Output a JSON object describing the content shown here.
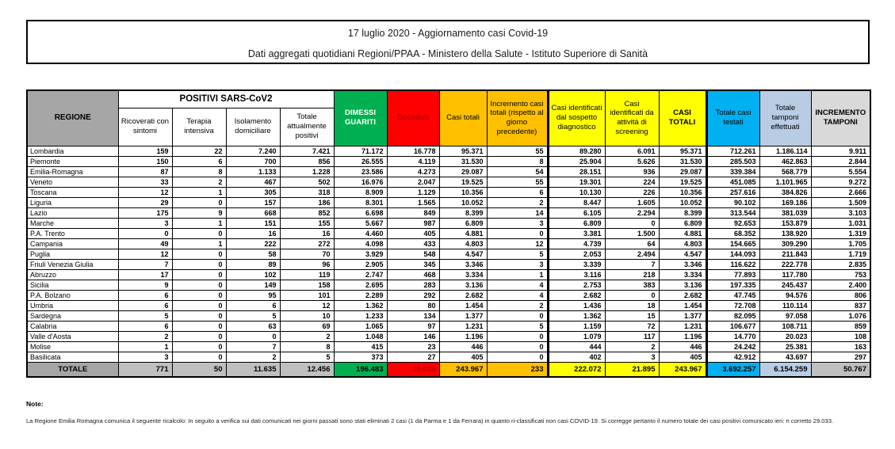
{
  "title": {
    "line1": "17 luglio 2020 - Aggiornamento casi Covid-19",
    "line2": "Dati aggregati quotidiani Regioni/PPAA - Ministero della Salute - Istituto Superiore di Sanità"
  },
  "table": {
    "group_header": "POSITIVI SARS-CoV2",
    "columns": [
      {
        "key": "regione",
        "label": "REGIONE"
      },
      {
        "key": "ricoverati_con_sintomi",
        "label": "Ricoverati con sintomi"
      },
      {
        "key": "terapia_intensiva",
        "label": "Terapia intensiva"
      },
      {
        "key": "isolamento_domiciliare",
        "label": "Isolamento domiciliare"
      },
      {
        "key": "totale_attualmente_positivi",
        "label": "Totale attualmente positivi"
      },
      {
        "key": "dimessi_guariti",
        "label": "DIMESSI GUARITI"
      },
      {
        "key": "deceduti",
        "label": "Deceduti"
      },
      {
        "key": "casi_totali",
        "label": "Casi totali"
      },
      {
        "key": "incremento_casi_totali",
        "label": "Incremento casi totali (rispetto al giorno precedente)"
      },
      {
        "key": "casi_sospetto_diagnostico",
        "label": "Casi identificati dal sospetto diagnostico"
      },
      {
        "key": "casi_screening",
        "label": "Casi identificati da attività di screening"
      },
      {
        "key": "casi_totali_2",
        "label": "CASI TOTALI"
      },
      {
        "key": "totale_casi_testati",
        "label": "Totale casi testati"
      },
      {
        "key": "totale_tamponi_effettuati",
        "label": "Totale tamponi effettuati"
      },
      {
        "key": "incremento_tamponi",
        "label": "INCREMENTO TAMPONI"
      }
    ],
    "rows": [
      [
        "Lombardia",
        "159",
        "22",
        "7.240",
        "7.421",
        "71.172",
        "16.778",
        "95.371",
        "55",
        "89.280",
        "6.091",
        "95.371",
        "712.261",
        "1.186.114",
        "9.911"
      ],
      [
        "Piemonte",
        "150",
        "6",
        "700",
        "856",
        "26.555",
        "4.119",
        "31.530",
        "8",
        "25.904",
        "5.626",
        "31.530",
        "285.503",
        "462.863",
        "2.844"
      ],
      [
        "Emilia-Romagna",
        "87",
        "8",
        "1.133",
        "1.228",
        "23.586",
        "4.273",
        "29.087",
        "54",
        "28.151",
        "936",
        "29.087",
        "339.384",
        "568.779",
        "5.554"
      ],
      [
        "Veneto",
        "33",
        "2",
        "467",
        "502",
        "16.976",
        "2.047",
        "19.525",
        "55",
        "19.301",
        "224",
        "19.525",
        "451.085",
        "1.101.965",
        "9.272"
      ],
      [
        "Toscana",
        "12",
        "1",
        "305",
        "318",
        "8.909",
        "1.129",
        "10.356",
        "6",
        "10.130",
        "226",
        "10.356",
        "257.616",
        "384.826",
        "2.666"
      ],
      [
        "Liguria",
        "29",
        "0",
        "157",
        "186",
        "8.301",
        "1.565",
        "10.052",
        "2",
        "8.447",
        "1.605",
        "10.052",
        "90.102",
        "169.186",
        "1.509"
      ],
      [
        "Lazio",
        "175",
        "9",
        "668",
        "852",
        "6.698",
        "849",
        "8.399",
        "14",
        "6.105",
        "2.294",
        "8.399",
        "313.544",
        "381.039",
        "3.103"
      ],
      [
        "Marche",
        "3",
        "1",
        "151",
        "155",
        "5.667",
        "987",
        "6.809",
        "3",
        "6.809",
        "0",
        "6.809",
        "92.653",
        "153.879",
        "1.031"
      ],
      [
        "P.A. Trento",
        "0",
        "0",
        "16",
        "16",
        "4.460",
        "405",
        "4.881",
        "0",
        "3.381",
        "1.500",
        "4.881",
        "68.352",
        "138.920",
        "1.319"
      ],
      [
        "Campania",
        "49",
        "1",
        "222",
        "272",
        "4.098",
        "433",
        "4.803",
        "12",
        "4.739",
        "64",
        "4.803",
        "154.665",
        "309.290",
        "1.705"
      ],
      [
        "Puglia",
        "12",
        "0",
        "58",
        "70",
        "3.929",
        "548",
        "4.547",
        "5",
        "2.053",
        "2.494",
        "4.547",
        "144.093",
        "211.843",
        "1.719"
      ],
      [
        "Friuli Venezia Giulia",
        "7",
        "0",
        "89",
        "96",
        "2.905",
        "345",
        "3.346",
        "3",
        "3.339",
        "7",
        "3.346",
        "116.622",
        "222.778",
        "2.835"
      ],
      [
        "Abruzzo",
        "17",
        "0",
        "102",
        "119",
        "2.747",
        "468",
        "3.334",
        "1",
        "3.116",
        "218",
        "3.334",
        "77.893",
        "117.780",
        "753"
      ],
      [
        "Sicilia",
        "9",
        "0",
        "149",
        "158",
        "2.695",
        "283",
        "3.136",
        "4",
        "2.753",
        "383",
        "3.136",
        "197.335",
        "245.437",
        "2.400"
      ],
      [
        "P.A. Bolzano",
        "6",
        "0",
        "95",
        "101",
        "2.289",
        "292",
        "2.682",
        "4",
        "2.682",
        "0",
        "2.682",
        "47.745",
        "94.576",
        "806"
      ],
      [
        "Umbria",
        "6",
        "0",
        "6",
        "12",
        "1.362",
        "80",
        "1.454",
        "2",
        "1.436",
        "18",
        "1.454",
        "72.708",
        "110.114",
        "837"
      ],
      [
        "Sardegna",
        "5",
        "0",
        "5",
        "10",
        "1.233",
        "134",
        "1.377",
        "0",
        "1.362",
        "15",
        "1.377",
        "82.095",
        "97.058",
        "1.076"
      ],
      [
        "Calabria",
        "6",
        "0",
        "63",
        "69",
        "1.065",
        "97",
        "1.231",
        "5",
        "1.159",
        "72",
        "1.231",
        "106.677",
        "108.711",
        "859"
      ],
      [
        "Valle d'Aosta",
        "2",
        "0",
        "0",
        "2",
        "1.048",
        "146",
        "1.196",
        "0",
        "1.079",
        "117",
        "1.196",
        "14.770",
        "20.023",
        "108"
      ],
      [
        "Molise",
        "1",
        "0",
        "7",
        "8",
        "415",
        "23",
        "446",
        "0",
        "444",
        "2",
        "446",
        "24.242",
        "25.381",
        "163"
      ],
      [
        "Basilicata",
        "3",
        "0",
        "2",
        "5",
        "373",
        "27",
        "405",
        "0",
        "402",
        "3",
        "405",
        "42.912",
        "43.697",
        "297"
      ]
    ],
    "totals": [
      "TOTALE",
      "771",
      "50",
      "11.635",
      "12.456",
      "196.483",
      "35.028",
      "243.967",
      "233",
      "222.072",
      "21.895",
      "243.967",
      "3.692.257",
      "6.154.259",
      "50.767"
    ]
  },
  "note": {
    "label": "Note:",
    "text": "La Regione Emilia Romagna comunica il seguente ricalcolo: In seguito a verifica sui dati comunicati nei giorni passati sono stati eliminati 2 casi (1 da Parma e 1 da Ferrara) in quanto ri-classificati non casi COVID-19. Si corregge pertanto il numero totale dei casi positivi comunicato ieri: n corretto 29.033."
  },
  "colors": {
    "green_dimessi": "#00b050",
    "red_deceduti": "#ff0000",
    "darkred_text": "#c00000",
    "orange_casi": "#ffc000",
    "yellow_casi": "#ffff00",
    "cyan_testati": "#00b0f0",
    "lightblue_tamponi": "#b8cce4",
    "gray_header": "#a6a6a6",
    "gray_totals": "#bfbfbf",
    "lightgray_incremento": "#d9d9d9"
  }
}
